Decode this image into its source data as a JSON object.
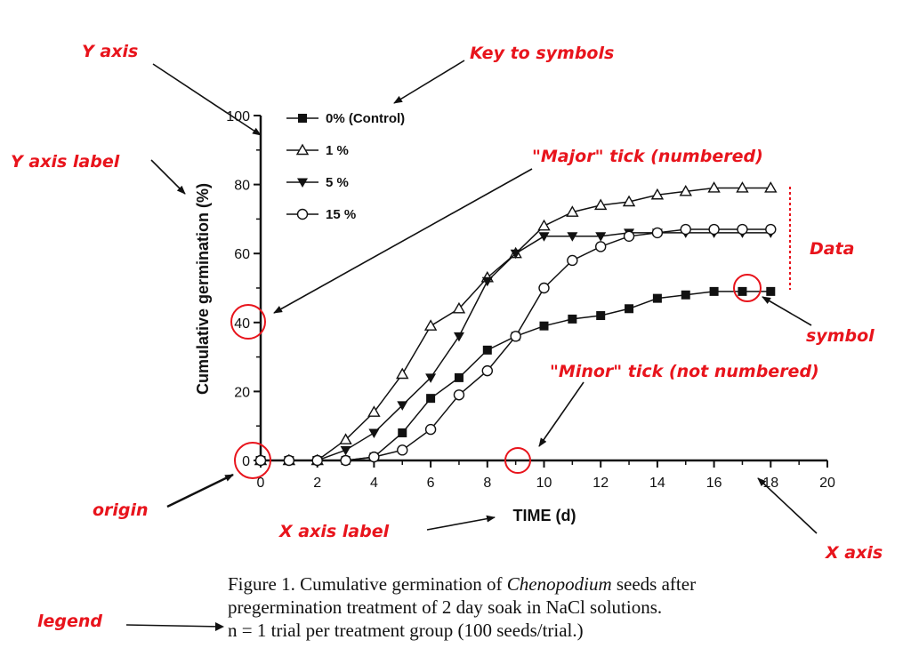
{
  "chart_data": {
    "type": "line",
    "title": "",
    "xlabel": "TIME (d)",
    "ylabel": "Cumulative germination (%)",
    "xlim": [
      0,
      20
    ],
    "ylim": [
      0,
      100
    ],
    "x_ticks": [
      "0",
      "2",
      "4",
      "6",
      "8",
      "10",
      "12",
      "14",
      "16",
      "18",
      "20"
    ],
    "y_ticks": [
      "0",
      "20",
      "40",
      "60",
      "80",
      "100"
    ],
    "x": [
      0,
      1,
      2,
      3,
      4,
      5,
      6,
      7,
      8,
      9,
      10,
      11,
      12,
      13,
      14,
      15,
      16,
      17,
      18
    ],
    "legend_position": "top-left",
    "grid": false,
    "series": [
      {
        "name": "0% (Control)",
        "marker": "square-filled",
        "values": [
          0,
          0,
          0,
          0,
          1,
          8,
          18,
          24,
          32,
          36,
          39,
          41,
          42,
          44,
          47,
          48,
          49,
          49,
          49
        ]
      },
      {
        "name": "1 %",
        "marker": "triangle-up-open",
        "values": [
          0,
          0,
          0,
          6,
          14,
          25,
          39,
          44,
          53,
          60,
          68,
          72,
          74,
          75,
          77,
          78,
          79,
          79,
          79
        ]
      },
      {
        "name": "5 %",
        "marker": "triangle-down-filled",
        "values": [
          0,
          0,
          0,
          3,
          8,
          16,
          24,
          36,
          52,
          60,
          65,
          65,
          65,
          66,
          66,
          66,
          66,
          66,
          66
        ]
      },
      {
        "name": "15 %",
        "marker": "circle-open",
        "values": [
          0,
          0,
          0,
          0,
          1,
          3,
          9,
          19,
          26,
          36,
          50,
          58,
          62,
          65,
          66,
          67,
          67,
          67,
          67
        ]
      }
    ]
  },
  "annotations": {
    "y_axis": "Y axis",
    "key_to_symbols": "Key to symbols",
    "y_axis_label": "Y axis label",
    "major_tick": "\"Major\" tick (numbered)",
    "data": "Data",
    "symbol": "symbol",
    "minor_tick": "\"Minor\" tick (not numbered)",
    "origin": "origin",
    "x_axis_label": "X axis label",
    "x_axis": "X axis",
    "legend": "legend"
  },
  "caption": {
    "prefix": "Figure 1. Cumulative germination of ",
    "italic": "Chenopodium",
    "suffix": " seeds after",
    "line2": "pregermination treatment of 2 day soak in NaCl solutions.",
    "line3": "n = 1 trial per treatment group (100 seeds/trial.)"
  },
  "colors": {
    "annotation": "#e8141c",
    "plot": "#111111"
  }
}
